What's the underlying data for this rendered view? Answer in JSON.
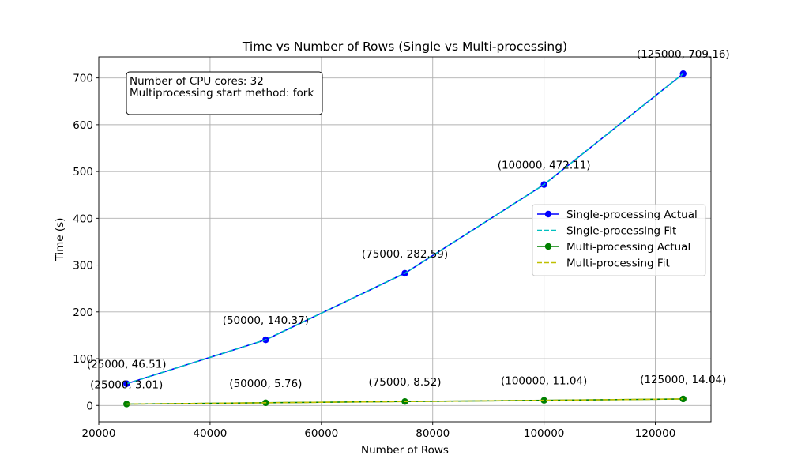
{
  "chart_data": {
    "type": "line",
    "title": "Time vs Number of Rows (Single vs Multi-processing)",
    "xlabel": "Number of Rows",
    "ylabel": "Time (s)",
    "xlim": [
      20000,
      130000
    ],
    "ylim": [
      -35,
      745
    ],
    "xticks": [
      20000,
      40000,
      60000,
      80000,
      100000,
      120000
    ],
    "yticks": [
      0,
      100,
      200,
      300,
      400,
      500,
      600,
      700
    ],
    "grid": true,
    "legend_position": "center-right",
    "info_box": {
      "lines": [
        "Number of CPU cores: 32",
        "Multiprocessing start method: fork"
      ]
    },
    "x": [
      25000,
      50000,
      75000,
      100000,
      125000
    ],
    "series": [
      {
        "name": "Single-processing Actual",
        "style": "solid-marker",
        "color": "#0000ff",
        "values": [
          46.51,
          140.37,
          282.59,
          472.11,
          709.16
        ],
        "point_labels": [
          "(25000, 46.51)",
          "(50000, 140.37)",
          "(75000, 282.59)",
          "(100000, 472.11)",
          "(125000, 709.16)"
        ]
      },
      {
        "name": "Single-processing Fit",
        "style": "dashed",
        "color": "#00bfbf",
        "values": [
          46.51,
          140.37,
          282.59,
          472.11,
          709.16
        ]
      },
      {
        "name": "Multi-processing Actual",
        "style": "solid-marker",
        "color": "#008000",
        "values": [
          3.01,
          5.76,
          8.52,
          11.04,
          14.04
        ],
        "point_labels": [
          "(25000, 3.01)",
          "(50000, 5.76)",
          "(75000, 8.52)",
          "(100000, 11.04)",
          "(125000, 14.04)"
        ]
      },
      {
        "name": "Multi-processing Fit",
        "style": "dashed",
        "color": "#bfbf00",
        "values": [
          3.01,
          5.76,
          8.52,
          11.04,
          14.04
        ]
      }
    ]
  }
}
